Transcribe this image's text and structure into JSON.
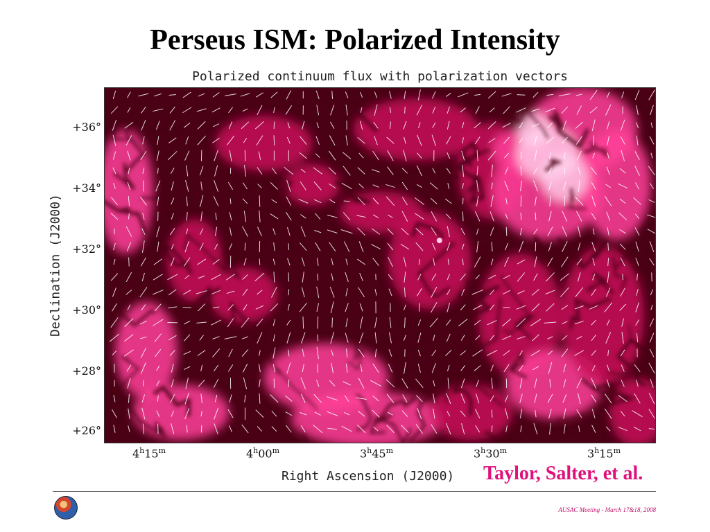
{
  "slide": {
    "title": "Perseus ISM: Polarized Intensity",
    "credit": "Taylor, Salter, et al.",
    "footer": "AUSAC Meeting - March 17&18, 2008"
  },
  "figure": {
    "title": "Polarized continuum flux with polarization vectors",
    "xlabel": "Right Ascension (J2000)",
    "ylabel": "Declination (J2000)",
    "yticks": [
      "+36°",
      "+34°",
      "+32°",
      "+30°",
      "+28°",
      "+26°"
    ],
    "xticks": [
      {
        "h": "4",
        "m": "15"
      },
      {
        "h": "4",
        "m": "00"
      },
      {
        "h": "3",
        "m": "45"
      },
      {
        "h": "3",
        "m": "30"
      },
      {
        "h": "3",
        "m": "15"
      }
    ],
    "colors": {
      "dark": "#4a0015",
      "mid": "#c8105a",
      "bright": "#ff3f9a",
      "peak": "#ffd0ea",
      "vector": "#ffffff"
    }
  },
  "logo_icon": "agency-seal-icon"
}
